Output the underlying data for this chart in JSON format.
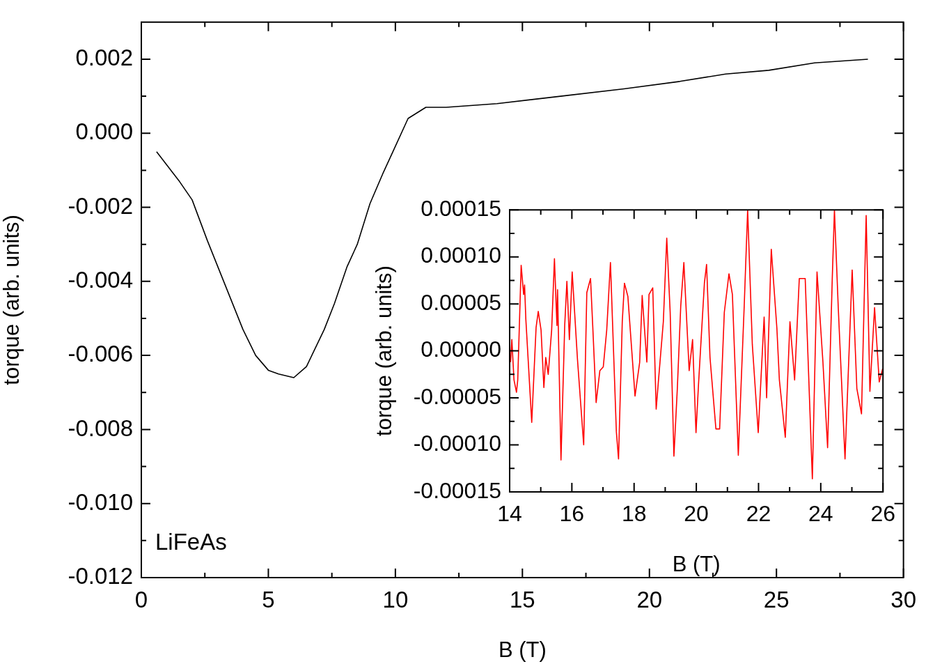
{
  "chart_data": [
    {
      "type": "line",
      "xlabel": "B (T)",
      "ylabel": "torque (arb. units)",
      "annotations": [
        "LiFeAs"
      ],
      "grid": false,
      "legend": false,
      "marker": "none",
      "line_style": "solid",
      "x": [
        0.6,
        1.5,
        2.0,
        2.6,
        3.3,
        4.0,
        4.5,
        5.0,
        5.4,
        6.0,
        6.5,
        7.2,
        7.6,
        8.1,
        8.5,
        9.0,
        9.5,
        9.9,
        10.5,
        11.2,
        12,
        14,
        16.5,
        19,
        21.2,
        23,
        24.7,
        26.5,
        28.6
      ],
      "series": [
        {
          "color": "#000000",
          "values": [
            -0.0005,
            -0.0013,
            -0.0018,
            -0.0029,
            -0.0041,
            -0.0053,
            -0.006,
            -0.0064,
            -0.0065,
            -0.0066,
            -0.0063,
            -0.0053,
            -0.0046,
            -0.0036,
            -0.003,
            -0.0019,
            -0.0011,
            -0.0005,
            0.0004,
            0.0007,
            0.0007,
            0.0008,
            0.001,
            0.0012,
            0.0014,
            0.0016,
            0.0017,
            0.0019,
            0.002
          ]
        }
      ],
      "xlim": [
        0,
        30
      ],
      "ylim": [
        -0.012,
        0.003
      ],
      "xticks": [
        0,
        {
          "value": 2.5,
          "label": null
        },
        5,
        {
          "value": 7.5,
          "label": null
        },
        10,
        {
          "value": 12.5,
          "label": null
        },
        15,
        {
          "value": 17.5,
          "label": null
        },
        20,
        {
          "value": 22.5,
          "label": null
        },
        25,
        {
          "value": 27.5,
          "label": null
        },
        30
      ],
      "yticks": [
        {
          "value": -0.012,
          "label": "-0.012"
        },
        {
          "value": -0.011,
          "label": null
        },
        {
          "value": -0.01,
          "label": "-0.010"
        },
        {
          "value": -0.009,
          "label": null
        },
        {
          "value": -0.008,
          "label": "-0.008"
        },
        {
          "value": -0.007,
          "label": null
        },
        {
          "value": -0.006,
          "label": "-0.006"
        },
        {
          "value": -0.005,
          "label": null
        },
        {
          "value": -0.004,
          "label": "-0.004"
        },
        {
          "value": -0.003,
          "label": null
        },
        {
          "value": -0.002,
          "label": "-0.002"
        },
        {
          "value": -0.001,
          "label": null
        },
        {
          "value": 0,
          "label": "0.000"
        },
        {
          "value": 0.001,
          "label": null
        },
        {
          "value": 0.002,
          "label": "0.002"
        }
      ]
    },
    {
      "type": "line",
      "xlabel": "B (T)",
      "ylabel": "torque (arb. units)",
      "grid": false,
      "legend": false,
      "marker": "none",
      "line_style": "solid",
      "x": [
        14.03,
        14.07,
        14.14,
        14.22,
        14.26,
        14.37,
        14.45,
        14.48,
        14.52,
        14.71,
        14.85,
        14.92,
        15.01,
        15.1,
        15.16,
        15.24,
        15.35,
        15.44,
        15.52,
        15.54,
        15.65,
        15.77,
        15.84,
        15.92,
        16.01,
        16.18,
        16.38,
        16.48,
        16.6,
        16.67,
        16.78,
        16.9,
        17.01,
        17.12,
        17.24,
        17.43,
        17.5,
        17.62,
        17.69,
        17.8,
        18.03,
        18.18,
        18.26,
        18.41,
        18.48,
        18.6,
        18.71,
        18.78,
        18.94,
        19.05,
        19.16,
        19.28,
        19.39,
        19.5,
        19.6,
        19.77,
        19.88,
        19.99,
        20.07,
        20.26,
        20.33,
        20.44,
        20.63,
        20.75,
        20.9,
        21.05,
        21.16,
        21.35,
        21.54,
        21.65,
        21.8,
        21.99,
        22.18,
        22.26,
        22.41,
        22.59,
        22.67,
        22.86,
        23.01,
        23.16,
        23.31,
        23.5,
        23.73,
        23.88,
        24.07,
        24.22,
        24.37,
        24.44,
        24.56,
        24.78,
        25.01,
        25.16,
        25.31,
        25.46,
        25.58,
        25.73,
        25.88,
        25.99
      ],
      "series": [
        {
          "color": "#ff0000",
          "values": [
            -1.2e-05,
            1.2e-05,
            -3.1e-05,
            -4.4e-05,
            -3.1e-05,
            9.1e-05,
            6e-05,
            7e-05,
            3.4e-05,
            -7.6e-05,
            2.5e-05,
            4.2e-05,
            2.2e-05,
            -3.9e-05,
            -7e-06,
            -2.5e-05,
            2.2e-05,
            9.8e-05,
            2.7e-05,
            6.5e-05,
            -0.000116,
            2.7e-05,
            7.4e-05,
            1.2e-05,
            8.4e-05,
            -9e-06,
            -0.0001,
            6.2e-05,
            7.7e-05,
            2.7e-05,
            -5.5e-05,
            -2.1e-05,
            -1.7e-05,
            2.2e-05,
            9.4e-05,
            -8.6e-05,
            -0.000115,
            3.1e-05,
            7.2e-05,
            5.8e-05,
            -4.8e-05,
            -1.2e-05,
            5.9e-05,
            -1.2e-05,
            6e-05,
            6.7e-05,
            -6.2e-05,
            -3.3e-05,
            3.1e-05,
            0.00012,
            4.1e-05,
            -0.000112,
            -4e-05,
            4.8e-05,
            9.4e-05,
            -2.1e-05,
            1.2e-05,
            -8.7e-05,
            -3.6e-05,
            7.2e-05,
            9.2e-05,
            -7e-06,
            -8.3e-05,
            -8.3e-05,
            4.1e-05,
            8.2e-05,
            6e-05,
            -0.000111,
            4.8e-05,
            0.00015,
            7e-06,
            -8.7e-05,
            3.6e-05,
            -5e-05,
            0.000108,
            2.4e-05,
            -3.1e-05,
            -9.2e-05,
            3.1e-05,
            -3.1e-05,
            7.7e-05,
            7.7e-05,
            -0.000136,
            8.4e-05,
            -1.2e-05,
            -0.000103,
            7.7e-05,
            0.00015,
            4.8e-05,
            -0.000115,
            8.6e-05,
            -4e-05,
            -6.7e-05,
            0.000144,
            -4.3e-05,
            4.6e-05,
            -3.3e-05,
            -1.9e-05
          ]
        }
      ],
      "xlim": [
        14,
        26
      ],
      "ylim": [
        -0.00015,
        0.00015
      ],
      "xticks": [
        14,
        {
          "value": 15,
          "label": null
        },
        16,
        {
          "value": 17,
          "label": null
        },
        18,
        {
          "value": 19,
          "label": null
        },
        20,
        {
          "value": 21,
          "label": null
        },
        22,
        {
          "value": 23,
          "label": null
        },
        24,
        {
          "value": 25,
          "label": null
        },
        26
      ],
      "yticks": [
        {
          "value": -0.00015,
          "label": "-0.00015"
        },
        {
          "value": -0.000125,
          "label": null
        },
        {
          "value": -0.0001,
          "label": "-0.00010"
        },
        {
          "value": -7.5e-05,
          "label": null
        },
        {
          "value": -5e-05,
          "label": "-0.00005"
        },
        {
          "value": -2.5e-05,
          "label": null
        },
        {
          "value": 0,
          "label": "0.00000"
        },
        {
          "value": 2.5e-05,
          "label": null
        },
        {
          "value": 5e-05,
          "label": "0.00005"
        },
        {
          "value": 7.5e-05,
          "label": null
        },
        {
          "value": 0.0001,
          "label": "0.00010"
        },
        {
          "value": 0.000125,
          "label": null
        },
        {
          "value": 0.00015,
          "label": "0.00015"
        }
      ]
    }
  ]
}
